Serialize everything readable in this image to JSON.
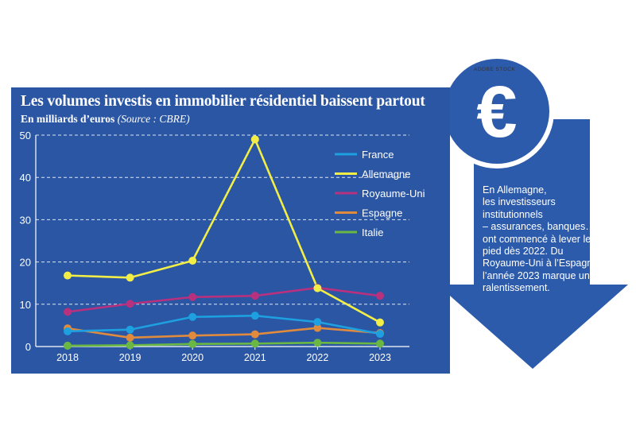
{
  "title": "Les volumes investis en immobilier résidentiel baissent partout",
  "subtitle_main": "En milliards d’euros",
  "subtitle_source": "(Source : CBRE)",
  "credit": "ADOBE STOCK",
  "euro_symbol": "€",
  "side_text_lines": [
    "En Allemagne,",
    "les investisseurs",
    "institutionnels",
    "– assurances, banques… –",
    "ont commencé à lever le",
    "pied dès 2022. Du",
    "Royaume-Uni à l’Espagne,",
    "l’année 2023 marque un",
    "ralentissement."
  ],
  "colors": {
    "panel": "#2a56a3",
    "arrow": "#2d5bab",
    "coin": "#2d5bab",
    "text": "#ffffff"
  },
  "chart_data": {
    "type": "line",
    "title": "Les volumes investis en immobilier résidentiel baissent partout",
    "ylabel": "En milliards d’euros",
    "x": [
      "2018",
      "2019",
      "2020",
      "2021",
      "2022",
      "2023"
    ],
    "ylim": [
      0,
      50
    ],
    "yticks": [
      0,
      10,
      20,
      30,
      40,
      50
    ],
    "grid": "horizontal dashed",
    "legend": "top-right",
    "series": [
      {
        "name": "France",
        "color": "#1ea0e0",
        "values": [
          3.6,
          4.0,
          7.0,
          7.3,
          5.8,
          3.0
        ]
      },
      {
        "name": "Allemagne",
        "color": "#f2ee47",
        "values": [
          16.8,
          16.3,
          20.3,
          49.0,
          13.8,
          5.7
        ]
      },
      {
        "name": "Royaume-Uni",
        "color": "#b7317f",
        "values": [
          8.2,
          10.1,
          11.7,
          12.0,
          13.9,
          12.0
        ]
      },
      {
        "name": "Espagne",
        "color": "#e08a3d",
        "values": [
          4.3,
          2.1,
          2.6,
          2.9,
          4.4,
          3.2
        ]
      },
      {
        "name": "Italie",
        "color": "#6ab843",
        "values": [
          0.2,
          0.3,
          0.6,
          0.7,
          0.9,
          0.7
        ]
      }
    ]
  }
}
